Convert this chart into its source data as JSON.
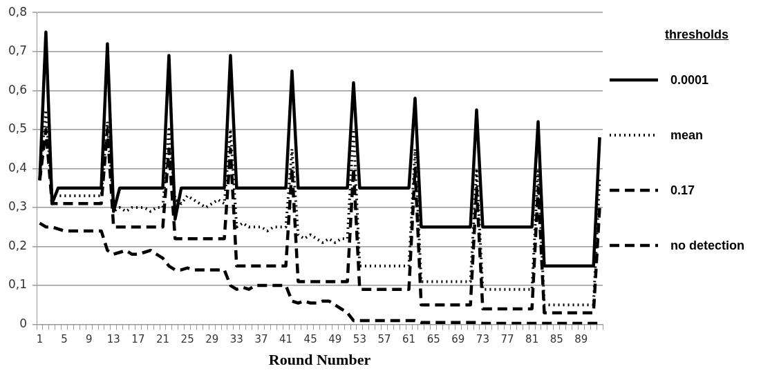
{
  "chart_data": {
    "type": "line",
    "xlabel": "Round Number",
    "legend_title": "thresholds",
    "legend": "right",
    "grid": "y",
    "marker": "none",
    "categories": [
      "1",
      null,
      null,
      null,
      "5",
      null,
      null,
      null,
      "9",
      null,
      null,
      null,
      "13",
      null,
      null,
      null,
      "17",
      null,
      null,
      null,
      "21",
      null,
      null,
      null,
      "25",
      null,
      null,
      null,
      "29",
      null,
      null,
      null,
      "33",
      null,
      null,
      null,
      "37",
      null,
      null,
      null,
      "41",
      null,
      null,
      null,
      "45",
      null,
      null,
      null,
      "49",
      null,
      null,
      null,
      "53",
      null,
      null,
      null,
      "57",
      null,
      null,
      null,
      "61",
      null,
      null,
      null,
      "65",
      null,
      null,
      null,
      "69",
      null,
      null,
      null,
      "73",
      null,
      null,
      null,
      "77",
      null,
      null,
      null,
      "81",
      null,
      null,
      null,
      "85",
      null,
      null,
      null,
      "89",
      null,
      null,
      null
    ],
    "ylim": [
      0,
      0.8
    ],
    "yticks": [
      0,
      {
        "value": 0.1,
        "label": "0,1"
      },
      {
        "value": 0.2,
        "label": "0,2"
      },
      {
        "value": 0.3,
        "label": "0,3"
      },
      {
        "value": 0.4,
        "label": "0,4"
      },
      {
        "value": 0.5,
        "label": "0,5"
      },
      {
        "value": 0.6,
        "label": "0,6"
      },
      {
        "value": 0.7,
        "label": "0,7"
      },
      {
        "value": 0.8,
        "label": "0,8"
      }
    ],
    "series": [
      {
        "name": "0.0001",
        "color": "#000000",
        "line_style": "solid",
        "values": [
          0.37,
          0.75,
          0.31,
          0.35,
          0.35,
          0.35,
          0.35,
          0.35,
          0.35,
          0.35,
          0.35,
          0.72,
          0.29,
          0.35,
          0.35,
          0.35,
          0.35,
          0.35,
          0.35,
          0.35,
          0.35,
          0.69,
          0.27,
          0.35,
          0.35,
          0.35,
          0.35,
          0.35,
          0.35,
          0.35,
          0.35,
          0.69,
          0.35,
          0.35,
          0.35,
          0.35,
          0.35,
          0.35,
          0.35,
          0.35,
          0.35,
          0.65,
          0.35,
          0.35,
          0.35,
          0.35,
          0.35,
          0.35,
          0.35,
          0.35,
          0.35,
          0.62,
          0.35,
          0.35,
          0.35,
          0.35,
          0.35,
          0.35,
          0.35,
          0.35,
          0.35,
          0.58,
          0.25,
          0.25,
          0.25,
          0.25,
          0.25,
          0.25,
          0.25,
          0.25,
          0.25,
          0.55,
          0.25,
          0.25,
          0.25,
          0.25,
          0.25,
          0.25,
          0.25,
          0.25,
          0.25,
          0.52,
          0.15,
          0.15,
          0.15,
          0.15,
          0.15,
          0.15,
          0.15,
          0.15,
          0.15,
          0.48
        ]
      },
      {
        "name": "mean",
        "color": "#000000",
        "line_style": "dotted",
        "values": [
          0.37,
          0.55,
          0.33,
          0.33,
          0.33,
          0.33,
          0.33,
          0.33,
          0.33,
          0.33,
          0.33,
          0.52,
          0.29,
          0.3,
          0.29,
          0.3,
          0.3,
          0.3,
          0.29,
          0.3,
          0.3,
          0.5,
          0.32,
          0.31,
          0.33,
          0.32,
          0.31,
          0.3,
          0.31,
          0.32,
          0.31,
          0.5,
          0.25,
          0.26,
          0.25,
          0.25,
          0.25,
          0.24,
          0.25,
          0.25,
          0.25,
          0.45,
          0.23,
          0.22,
          0.23,
          0.22,
          0.21,
          0.22,
          0.21,
          0.22,
          0.22,
          0.5,
          0.15,
          0.15,
          0.15,
          0.15,
          0.15,
          0.15,
          0.15,
          0.15,
          0.15,
          0.45,
          0.11,
          0.11,
          0.11,
          0.11,
          0.11,
          0.11,
          0.11,
          0.11,
          0.11,
          0.4,
          0.09,
          0.09,
          0.09,
          0.09,
          0.09,
          0.09,
          0.09,
          0.09,
          0.09,
          0.4,
          0.05,
          0.05,
          0.05,
          0.05,
          0.05,
          0.05,
          0.05,
          0.05,
          0.05,
          0.38
        ]
      },
      {
        "name": "0.17",
        "color": "#000000",
        "line_style": "dashed",
        "values": [
          0.37,
          0.5,
          0.31,
          0.31,
          0.31,
          0.31,
          0.31,
          0.31,
          0.31,
          0.31,
          0.31,
          0.5,
          0.25,
          0.25,
          0.25,
          0.25,
          0.25,
          0.25,
          0.25,
          0.25,
          0.25,
          0.45,
          0.22,
          0.22,
          0.22,
          0.22,
          0.22,
          0.22,
          0.22,
          0.22,
          0.22,
          0.45,
          0.15,
          0.15,
          0.15,
          0.15,
          0.15,
          0.15,
          0.15,
          0.15,
          0.15,
          0.4,
          0.11,
          0.11,
          0.11,
          0.11,
          0.11,
          0.11,
          0.11,
          0.11,
          0.11,
          0.4,
          0.09,
          0.09,
          0.09,
          0.09,
          0.09,
          0.09,
          0.09,
          0.09,
          0.09,
          0.4,
          0.05,
          0.05,
          0.05,
          0.05,
          0.05,
          0.05,
          0.05,
          0.05,
          0.05,
          0.35,
          0.04,
          0.04,
          0.04,
          0.04,
          0.04,
          0.04,
          0.04,
          0.04,
          0.04,
          0.35,
          0.03,
          0.03,
          0.03,
          0.03,
          0.03,
          0.03,
          0.03,
          0.03,
          0.03,
          0.3
        ]
      },
      {
        "name": "no detection",
        "color": "#000000",
        "line_style": "dashed",
        "values": [
          0.26,
          0.25,
          0.25,
          0.245,
          0.24,
          0.24,
          0.24,
          0.24,
          0.24,
          0.24,
          0.24,
          0.19,
          0.18,
          0.185,
          0.19,
          0.18,
          0.18,
          0.185,
          0.19,
          0.18,
          0.17,
          0.15,
          0.14,
          0.14,
          0.145,
          0.14,
          0.14,
          0.14,
          0.14,
          0.14,
          0.14,
          0.1,
          0.09,
          0.095,
          0.09,
          0.1,
          0.1,
          0.1,
          0.1,
          0.1,
          0.1,
          0.06,
          0.055,
          0.06,
          0.055,
          0.055,
          0.06,
          0.06,
          0.05,
          0.04,
          0.03,
          0.01,
          0.01,
          0.01,
          0.01,
          0.01,
          0.01,
          0.01,
          0.01,
          0.01,
          0.01,
          0.01,
          0.005,
          0.005,
          0.005,
          0.005,
          0.005,
          0.005,
          0.005,
          0.005,
          0.005,
          0.005,
          0.003,
          0.003,
          0.003,
          0.003,
          0.003,
          0.003,
          0.003,
          0.003,
          0.003,
          0.003,
          0.003,
          0.003,
          0.003,
          0.003,
          0.003,
          0.003,
          0.003,
          0.003,
          0.003,
          0.003
        ]
      }
    ]
  }
}
